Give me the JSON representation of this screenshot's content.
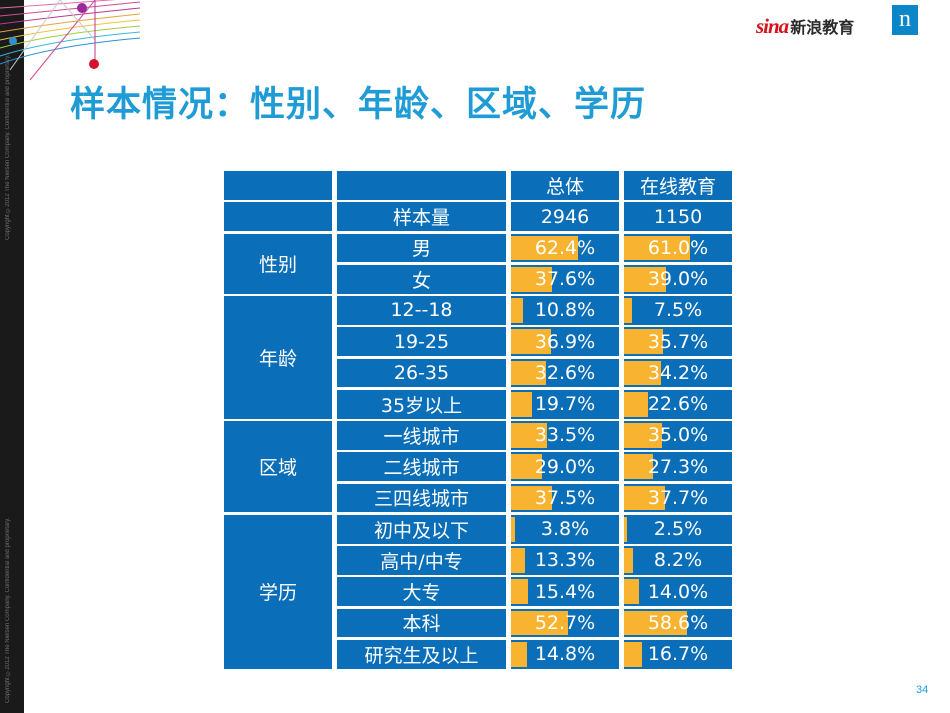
{
  "copyright": "Copyright ©2012 The Nielsen Company. Confidential and proprietary.",
  "logo": {
    "brand": "sina",
    "name": "新浪教育",
    "corner": "n"
  },
  "title": "样本情况：性别、年龄、区域、学历",
  "page_number": "34",
  "colors": {
    "cell_blue": "#0a6eb8",
    "bar_orange": "#f8b330",
    "title_blue": "#1f9cd6",
    "sidebar": "#1a1a1a",
    "sina_red": "#d4131a"
  },
  "table": {
    "headers": [
      "",
      "",
      "总体",
      "在线教育"
    ],
    "sample_row": {
      "label": "样本量",
      "total": "2946",
      "online": "1150"
    },
    "groups": [
      {
        "name": "性别",
        "rows": [
          {
            "label": "男",
            "total": 62.4,
            "online": 61.0
          },
          {
            "label": "女",
            "total": 37.6,
            "online": 39.0
          }
        ]
      },
      {
        "name": "年龄",
        "rows": [
          {
            "label": "12--18",
            "total": 10.8,
            "online": 7.5
          },
          {
            "label": "19-25",
            "total": 36.9,
            "online": 35.7
          },
          {
            "label": "26-35",
            "total": 32.6,
            "online": 34.2
          },
          {
            "label": "35岁以上",
            "total": 19.7,
            "online": 22.6
          }
        ]
      },
      {
        "name": "区域",
        "rows": [
          {
            "label": "一线城市",
            "total": 33.5,
            "online": 35.0
          },
          {
            "label": "二线城市",
            "total": 29.0,
            "online": 27.3
          },
          {
            "label": "三四线城市",
            "total": 37.5,
            "online": 37.7
          }
        ]
      },
      {
        "name": "学历",
        "rows": [
          {
            "label": "初中及以下",
            "total": 3.8,
            "online": 2.5
          },
          {
            "label": "高中/中专",
            "total": 13.3,
            "online": 8.2
          },
          {
            "label": "大专",
            "total": 15.4,
            "online": 14.0
          },
          {
            "label": "本科",
            "total": 52.7,
            "online": 58.6
          },
          {
            "label": "研究生及以上",
            "total": 14.8,
            "online": 16.7
          }
        ]
      }
    ]
  }
}
